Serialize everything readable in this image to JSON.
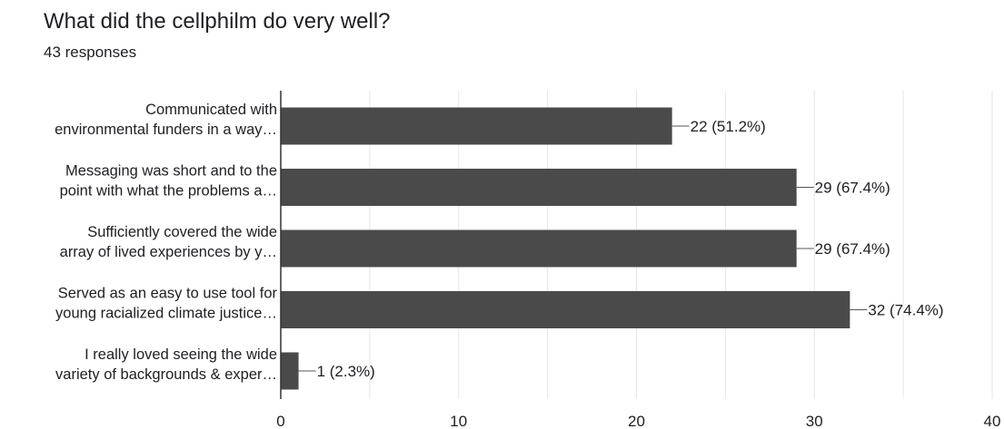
{
  "title": "What did the cellphilm do very well?",
  "subtitle": "43 responses",
  "chart_data": {
    "type": "bar",
    "orientation": "horizontal",
    "categories": [
      [
        "Communicated with",
        "environmental funders in a way…"
      ],
      [
        "Messaging was short and to the",
        "point with what the problems a…"
      ],
      [
        "Sufficiently covered the wide",
        "array of lived experiences by y…"
      ],
      [
        "Served as an easy to use tool for",
        "young racialized climate justice…"
      ],
      [
        "I really loved seeing the wide",
        "variety of backgrounds & exper…"
      ]
    ],
    "values": [
      22,
      29,
      29,
      32,
      1
    ],
    "data_labels": [
      "22 (51.2%)",
      "29 (67.4%)",
      "29 (67.4%)",
      "32 (74.4%)",
      "1 (2.3%)"
    ],
    "xlim": [
      0,
      40
    ],
    "xticks": [
      0,
      10,
      20,
      30,
      40
    ],
    "bar_color": "#4a4a4a",
    "grid": true
  }
}
